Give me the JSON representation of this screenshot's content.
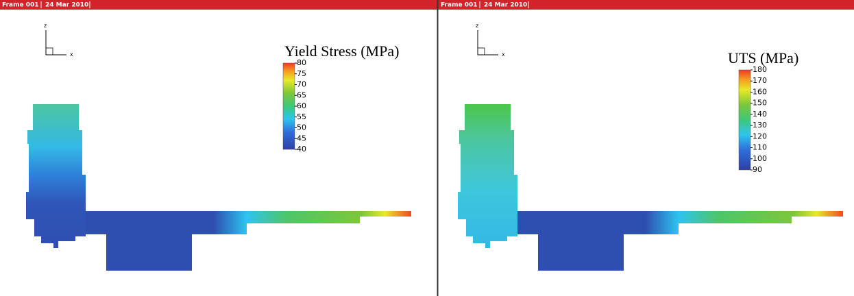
{
  "panels": [
    {
      "frame": "Frame 001",
      "date": "24 Mar 2010",
      "axis_z": "z",
      "axis_x": "x",
      "legend_title": "Yield Stress (MPa)",
      "legend_ticks": [
        80,
        75,
        70,
        65,
        60,
        55,
        50,
        45,
        40
      ]
    },
    {
      "frame": "Frame 001",
      "date": "24 Mar 2010",
      "axis_z": "z",
      "axis_x": "x",
      "legend_title": "UTS (MPa)",
      "legend_ticks": [
        180,
        170,
        160,
        150,
        140,
        130,
        120,
        110,
        100,
        90
      ]
    }
  ]
}
